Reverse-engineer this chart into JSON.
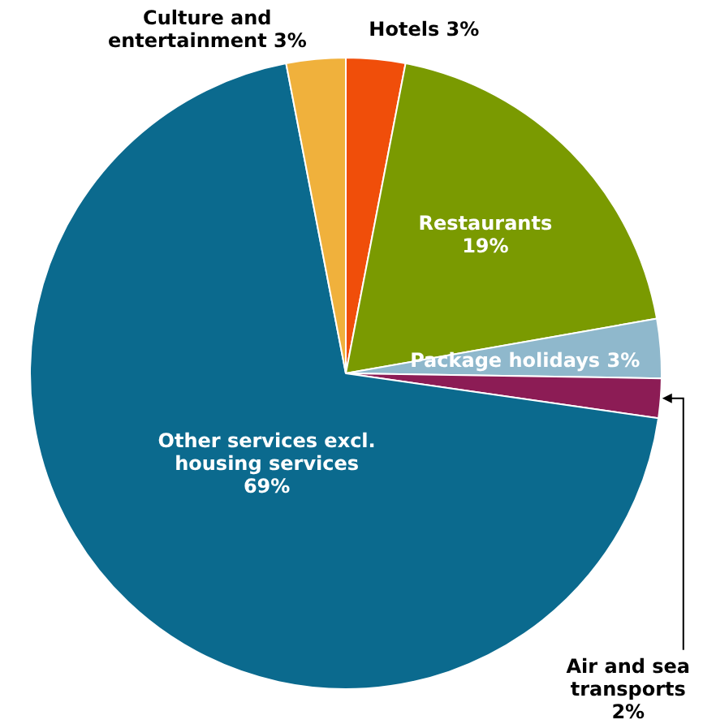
{
  "chart_data": {
    "type": "pie",
    "categories": [
      "Hotels",
      "Restaurants",
      "Package holidays",
      "Air and sea transports",
      "Other services excl. housing services",
      "Culture and entertainment"
    ],
    "values": [
      3,
      19,
      3,
      2,
      69,
      3
    ],
    "colors": [
      "#f04e0a",
      "#7a9a01",
      "#8fb8cc",
      "#8c1c55",
      "#0b6a8e",
      "#f0b13c"
    ],
    "value_labels": [
      "3%",
      "19%",
      "3%",
      "2%",
      "69%",
      "3%"
    ],
    "legend": false
  }
}
